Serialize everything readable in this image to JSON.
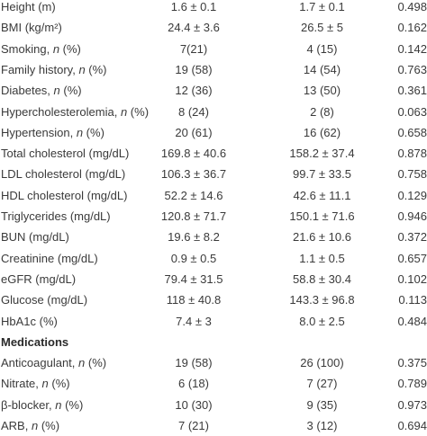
{
  "rows": [
    {
      "label": "Height (m)",
      "c1": "1.6 ± 0.1",
      "c2": "1.7 ± 0.1",
      "p": "0.498"
    },
    {
      "label": "BMI (kg/m²)",
      "c1": "24.4 ± 3.6",
      "c2": "26.5 ± 5",
      "p": "0.162"
    },
    {
      "label": "Smoking, ",
      "italic": "n",
      "suffix": " (%)",
      "c1": "7(21)",
      "c2": "4 (15)",
      "p": "0.142"
    },
    {
      "label": "Family history, ",
      "italic": "n",
      "suffix": " (%)",
      "c1": "19 (58)",
      "c2": "14 (54)",
      "p": "0.763"
    },
    {
      "label": "Diabetes, ",
      "italic": "n",
      "suffix": " (%)",
      "c1": "12 (36)",
      "c2": "13 (50)",
      "p": "0.361"
    },
    {
      "label": "Hypercholesterolemia, ",
      "italic": "n",
      "suffix": " (%)",
      "c1": "8 (24)",
      "c2": "2 (8)",
      "p": "0.063"
    },
    {
      "label": "Hypertension, ",
      "italic": "n",
      "suffix": " (%)",
      "c1": "20 (61)",
      "c2": "16 (62)",
      "p": "0.658"
    },
    {
      "label": "Total cholesterol (mg/dL)",
      "c1": "169.8 ± 40.6",
      "c2": "158.2 ± 37.4",
      "p": "0.878"
    },
    {
      "label": "LDL cholesterol (mg/dL)",
      "c1": "106.3 ± 36.7",
      "c2": "99.7 ± 33.5",
      "p": "0.758"
    },
    {
      "label": "HDL cholesterol (mg/dL)",
      "c1": "52.2 ± 14.6",
      "c2": "42.6 ± 11.1",
      "p": "0.129"
    },
    {
      "label": "Triglycerides (mg/dL)",
      "c1": "120.8 ± 71.7",
      "c2": "150.1 ± 71.6",
      "p": "0.946"
    },
    {
      "label": "BUN (mg/dL)",
      "c1": "19.6 ± 8.2",
      "c2": "21.6 ± 10.6",
      "p": "0.372"
    },
    {
      "label": "Creatinine (mg/dL)",
      "c1": "0.9 ± 0.5",
      "c2": "1.1 ± 0.5",
      "p": "0.657"
    },
    {
      "label": "eGFR (mg/dL)",
      "c1": "79.4 ± 31.5",
      "c2": "58.8 ± 30.4",
      "p": "0.102"
    },
    {
      "label": "Glucose (mg/dL)",
      "c1": "118 ± 40.8",
      "c2": "143.3 ± 96.8",
      "p": "0.113"
    },
    {
      "label": "HbA1c (%)",
      "c1": "7.4 ± 3",
      "c2": "8.0 ± 2.5",
      "p": "0.484"
    },
    {
      "label": "Medications",
      "section": true
    },
    {
      "label": "Anticoagulant, ",
      "italic": "n",
      "suffix": " (%)",
      "c1": "19 (58)",
      "c2": "26 (100)",
      "p": "0.375"
    },
    {
      "label": "Nitrate, ",
      "italic": "n",
      "suffix": " (%)",
      "c1": "6 (18)",
      "c2": "7 (27)",
      "p": "0.789"
    },
    {
      "label": "β-blocker, ",
      "italic": "n",
      "suffix": " (%)",
      "c1": "10 (30)",
      "c2": "9 (35)",
      "p": "0.973"
    },
    {
      "label": "ARB, ",
      "italic": "n",
      "suffix": " (%)",
      "c1": "7 (21)",
      "c2": "3 (12)",
      "p": "0.694"
    }
  ]
}
